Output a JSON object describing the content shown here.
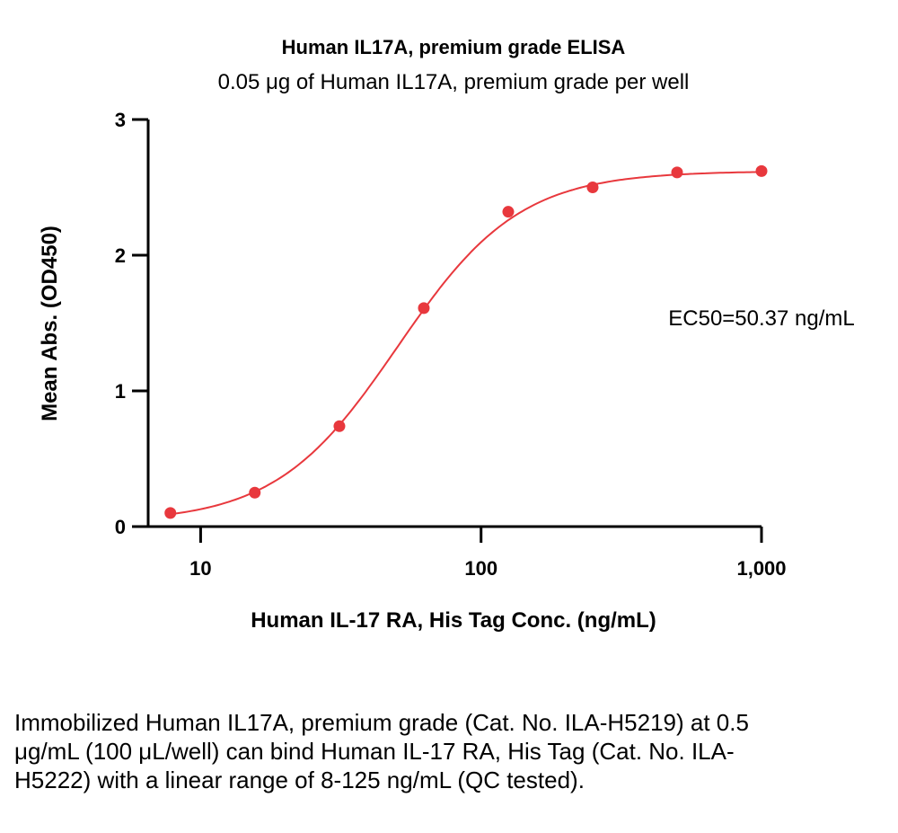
{
  "chart_data": {
    "type": "scatter",
    "title": "Human IL17A, premium grade ELISA",
    "subtitle": "0.05 μg of Human IL17A, premium grade per well",
    "xlabel": "Human IL-17 RA, His Tag Conc. (ng/mL)",
    "ylabel": "Mean Abs. (OD450)",
    "xscale": "log",
    "xlim": [
      6.5,
      1000
    ],
    "ylim": [
      0,
      3
    ],
    "xticks": [
      10,
      100,
      1000
    ],
    "xtick_labels": [
      "10",
      "100",
      "1,000"
    ],
    "yticks": [
      0,
      1,
      2,
      3
    ],
    "ytick_labels": [
      "0",
      "1",
      "2",
      "3"
    ],
    "grid": false,
    "annotation": "EC50=50.37 ng/mL",
    "series": [
      {
        "color": "#e8383d",
        "x": [
          7.8,
          15.6,
          31.25,
          62.5,
          125,
          250,
          500,
          1000
        ],
        "y": [
          0.1,
          0.25,
          0.74,
          1.61,
          2.32,
          2.5,
          2.61,
          2.62
        ],
        "fit": {
          "model": "4PL",
          "bottom": 0.03,
          "top": 2.62,
          "ec50": 50.37,
          "hill": 2.0
        }
      }
    ]
  },
  "caption": "Immobilized Human IL17A, premium grade (Cat. No. ILA-H5219) at 0.5 μg/mL (100 μL/well) can bind Human IL-17 RA, His Tag (Cat. No. ILA-H5222) with a linear range of 8-125 ng/mL (QC tested)."
}
